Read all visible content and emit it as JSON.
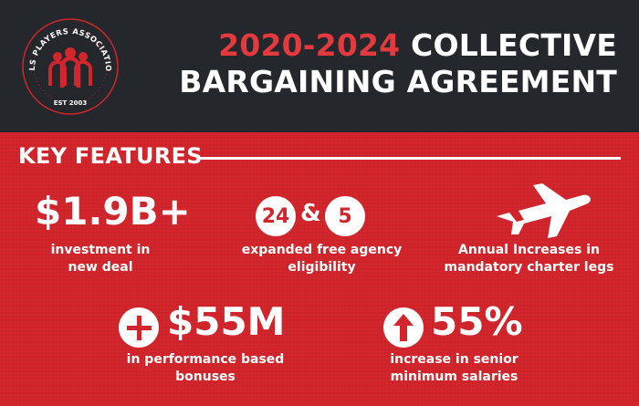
{
  "header": {
    "logo": {
      "org_name": "MLS PLAYERS ASSOCIATION",
      "est": "EST 2003"
    },
    "title_years": "2020-2024",
    "title_line1_rest": "COLLECTIVE",
    "title_line2": "BARGAINING AGREEMENT"
  },
  "section": {
    "title": "KEY FEATURES"
  },
  "features": [
    {
      "value": "$1.9B+",
      "caption_line1": "investment in",
      "caption_line2": "new deal"
    },
    {
      "value_a": "24",
      "amp": "&",
      "value_b": "5",
      "caption_line1": "expanded free agency",
      "caption_line2": "eligibility"
    },
    {
      "icon": "airplane-icon",
      "caption_line1": "Annual Increases in",
      "caption_line2": "mandatory charter legs"
    },
    {
      "icon": "plus-icon",
      "value": "$55M",
      "caption_line1": "in performance based",
      "caption_line2": "bonuses"
    },
    {
      "icon": "up-arrow-icon",
      "value": "55%",
      "caption_line1": "increase in senior",
      "caption_line2": "minimum salaries"
    }
  ],
  "colors": {
    "header_bg": "#24272b",
    "accent_red": "#d2252c",
    "title_red": "#e23a3f",
    "text_white": "#ffffff"
  }
}
